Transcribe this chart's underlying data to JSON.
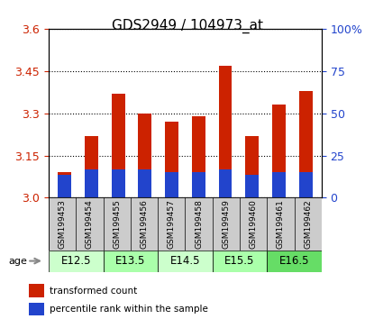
{
  "title": "GDS2949 / 104973_at",
  "samples": [
    "GSM199453",
    "GSM199454",
    "GSM199455",
    "GSM199456",
    "GSM199457",
    "GSM199458",
    "GSM199459",
    "GSM199460",
    "GSM199461",
    "GSM199462"
  ],
  "transformed_count": [
    3.09,
    3.22,
    3.37,
    3.3,
    3.27,
    3.29,
    3.47,
    3.22,
    3.33,
    3.38
  ],
  "percentile_base": 3.0,
  "percentile_values": [
    3.08,
    3.1,
    3.1,
    3.1,
    3.09,
    3.09,
    3.1,
    3.08,
    3.09,
    3.09
  ],
  "ylim_left": [
    3.0,
    3.6
  ],
  "yticks_left": [
    3.0,
    3.15,
    3.3,
    3.45,
    3.6
  ],
  "yticks_right": [
    0,
    25,
    50,
    75,
    100
  ],
  "bar_color": "#cc2200",
  "percentile_color": "#2244cc",
  "age_groups": [
    {
      "label": "E12.5",
      "start": 0,
      "end": 2,
      "color": "#ccffcc"
    },
    {
      "label": "E13.5",
      "start": 2,
      "end": 4,
      "color": "#aaffaa"
    },
    {
      "label": "E14.5",
      "start": 4,
      "end": 6,
      "color": "#ccffcc"
    },
    {
      "label": "E15.5",
      "start": 6,
      "end": 8,
      "color": "#aaffaa"
    },
    {
      "label": "E16.5",
      "start": 8,
      "end": 10,
      "color": "#66dd66"
    }
  ],
  "legend_items": [
    {
      "label": "transformed count",
      "color": "#cc2200"
    },
    {
      "label": "percentile rank within the sample",
      "color": "#2244cc"
    }
  ],
  "ylabel_left_color": "#cc2200",
  "ylabel_right_color": "#2244cc",
  "sample_area_color": "#cccccc",
  "bar_width": 0.5
}
